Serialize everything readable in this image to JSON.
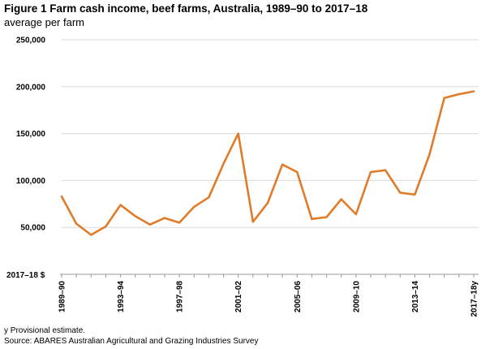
{
  "figure": {
    "title": "Figure 1 Farm cash income, beef farms, Australia, 1989–90 to 2017–18",
    "subtitle": "average per farm",
    "unit_label": "2017–18 $",
    "footnote": "y Provisional estimate.",
    "source": "Source: ABARES Australian Agricultural and Grazing Industries Survey"
  },
  "colors": {
    "line": "#e07b2a",
    "axis": "#999999",
    "grid": "#d9d9d9"
  },
  "chart_data": {
    "type": "line",
    "title": "Figure 1 Farm cash income, beef farms, Australia, 1989–90 to 2017–18",
    "subtitle": "average per farm",
    "ylabel": "2017–18 $",
    "xlabel": "",
    "ylim": [
      0,
      250000
    ],
    "y_ticks": [
      50000,
      100000,
      150000,
      200000,
      250000
    ],
    "y_tick_labels": [
      "50,000",
      "100,000",
      "150,000",
      "200,000",
      "250,000"
    ],
    "grid": "horizontal",
    "legend": "none",
    "categories": [
      "1989–90",
      "1990–91",
      "1991–92",
      "1992–93",
      "1993–94",
      "1994–95",
      "1995–96",
      "1996–97",
      "1997–98",
      "1998–99",
      "1999–00",
      "2000–01",
      "2001–02",
      "2002–03",
      "2003–04",
      "2004–05",
      "2005–06",
      "2006–07",
      "2007–08",
      "2008–09",
      "2009–10",
      "2010–11",
      "2011–12",
      "2012–13",
      "2013–14",
      "2014–15",
      "2015–16",
      "2016–17",
      "2017–18y"
    ],
    "x_tick_labels": [
      "1989–90",
      "1993–94",
      "1997–98",
      "2001–02",
      "2005–06",
      "2009–10",
      "2013–14",
      "2017–18y"
    ],
    "series": [
      {
        "color": "#e07b2a",
        "values": [
          83000,
          54000,
          42000,
          51000,
          74000,
          62000,
          53000,
          60000,
          55000,
          72000,
          82000,
          118000,
          150000,
          56000,
          76000,
          117000,
          109000,
          59000,
          61000,
          80000,
          64000,
          109000,
          111000,
          87000,
          85000,
          128000,
          188000,
          192000,
          195000
        ]
      }
    ]
  }
}
